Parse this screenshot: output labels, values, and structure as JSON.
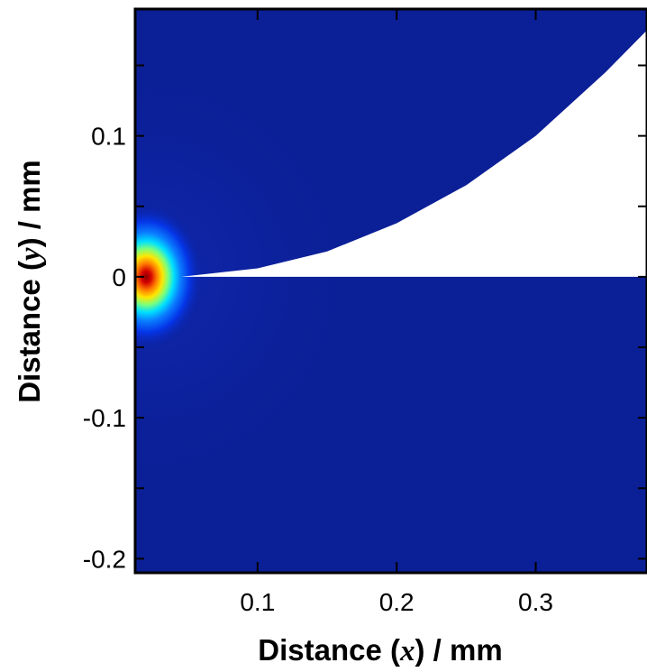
{
  "chart_data": {
    "type": "heatmap",
    "title": "",
    "xlabel": {
      "prefix": "Distance (",
      "variable": "x",
      "suffix": ") / mm"
    },
    "ylabel": {
      "prefix": "Distance (",
      "variable": "y",
      "suffix": ") / mm"
    },
    "xlim": [
      0.012,
      0.38
    ],
    "ylim": [
      -0.21,
      0.19
    ],
    "xticks": [
      {
        "value": 0.1,
        "label": "0.1"
      },
      {
        "value": 0.2,
        "label": "0.2"
      },
      {
        "value": 0.3,
        "label": "0.3"
      }
    ],
    "yticks": [
      {
        "value": 0.1,
        "label": "0.1"
      },
      {
        "value": 0,
        "label": "0"
      },
      {
        "value": -0.1,
        "label": "-0.1"
      },
      {
        "value": -0.2,
        "label": "-0.2"
      }
    ],
    "colormap": "jet",
    "background_color": "#0b1f96",
    "hotspot": {
      "x": 0.02,
      "y": 0.0
    },
    "crack": {
      "tip_x": 0.045,
      "opening_shape": "parabolic",
      "upper_edge": [
        {
          "x": 0.045,
          "y": 0.0
        },
        {
          "x": 0.1,
          "y": 0.006
        },
        {
          "x": 0.15,
          "y": 0.018
        },
        {
          "x": 0.2,
          "y": 0.038
        },
        {
          "x": 0.25,
          "y": 0.065
        },
        {
          "x": 0.3,
          "y": 0.1
        },
        {
          "x": 0.35,
          "y": 0.145
        },
        {
          "x": 0.38,
          "y": 0.175
        }
      ],
      "lower_edge_y": 0.0,
      "fill_color": "#ffffff"
    },
    "grid": false,
    "legend": "none"
  }
}
